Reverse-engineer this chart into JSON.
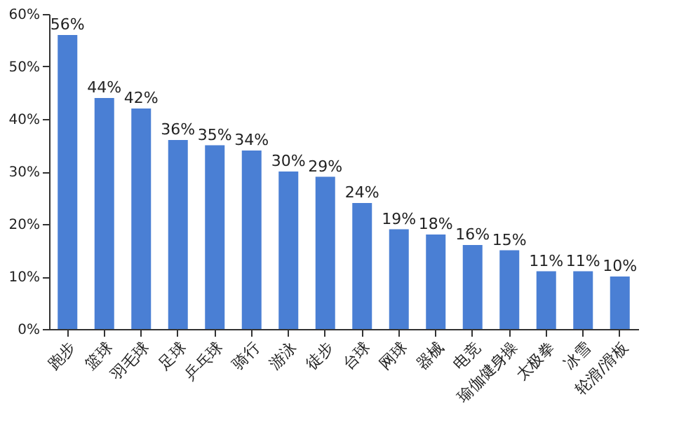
{
  "chart_data": {
    "type": "bar",
    "categories": [
      "跑步",
      "篮球",
      "羽毛球",
      "足球",
      "乒乓球",
      "骑行",
      "游泳",
      "徒步",
      "台球",
      "网球",
      "器械",
      "电竞",
      "瑜伽健身操",
      "太极拳",
      "冰雪",
      "轮滑/滑板"
    ],
    "values": [
      56,
      44,
      42,
      36,
      35,
      34,
      30,
      29,
      24,
      19,
      18,
      16,
      15,
      11,
      11,
      10
    ],
    "value_labels": [
      "56%",
      "44%",
      "42%",
      "36%",
      "35%",
      "34%",
      "30%",
      "29%",
      "24%",
      "19%",
      "18%",
      "16%",
      "15%",
      "11%",
      "11%",
      "10%"
    ],
    "color": "#4a7fd4",
    "ylim": [
      0,
      60
    ],
    "yticks": [
      {
        "value": 0,
        "label": "0%"
      },
      {
        "value": 10,
        "label": "10%"
      },
      {
        "value": 20,
        "label": "20%"
      },
      {
        "value": 30,
        "label": "30%"
      },
      {
        "value": 40,
        "label": "40%"
      },
      {
        "value": 50,
        "label": "50%"
      },
      {
        "value": 60,
        "label": "60%"
      }
    ],
    "grid": false
  }
}
